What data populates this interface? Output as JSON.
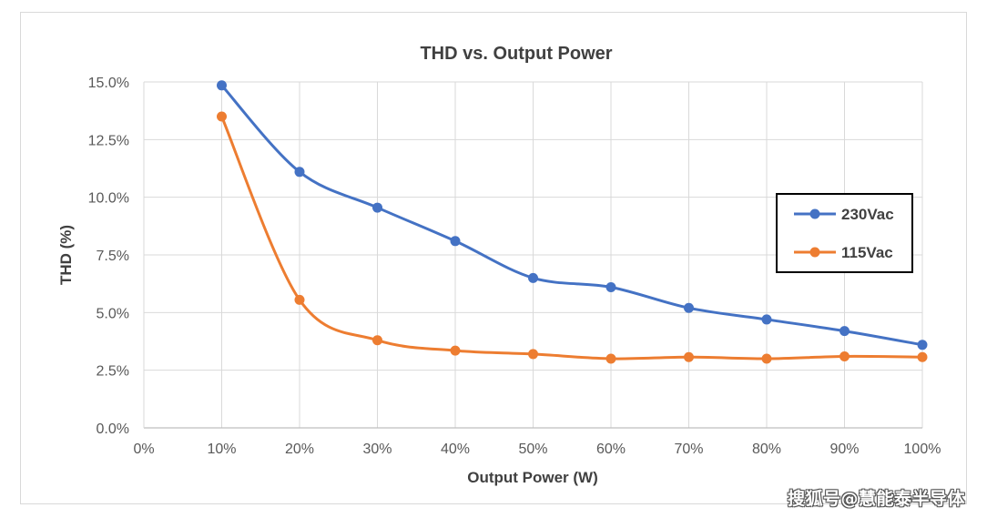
{
  "chart_data": {
    "type": "line",
    "title": "THD vs. Output Power",
    "xlabel": "Output Power (W)",
    "ylabel": "THD (%)",
    "x": [
      10,
      20,
      30,
      40,
      50,
      60,
      70,
      80,
      90,
      100
    ],
    "xlim": [
      0,
      100
    ],
    "ylim": [
      0,
      15
    ],
    "x_ticks": [
      "0%",
      "10%",
      "20%",
      "30%",
      "40%",
      "50%",
      "60%",
      "70%",
      "80%",
      "90%",
      "100%"
    ],
    "y_ticks": [
      "0.0%",
      "2.5%",
      "5.0%",
      "7.5%",
      "10.0%",
      "12.5%",
      "15.0%"
    ],
    "grid": true,
    "smooth": true,
    "legend_position": "right",
    "series": [
      {
        "name": "230Vac",
        "color": "#4472C4",
        "values": [
          14.85,
          11.1,
          9.55,
          8.1,
          6.5,
          6.1,
          5.2,
          4.7,
          4.2,
          3.6
        ]
      },
      {
        "name": "115Vac",
        "color": "#ED7D31",
        "values": [
          13.5,
          5.55,
          3.8,
          3.35,
          3.2,
          3.0,
          3.07,
          3.0,
          3.1,
          3.07
        ]
      }
    ]
  },
  "watermark": "搜狐号@慧能泰半导体"
}
